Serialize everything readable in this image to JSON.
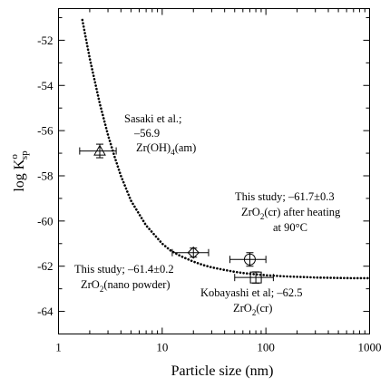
{
  "chart_data": {
    "type": "scatter",
    "title": "",
    "xlabel": "Particle size (nm)",
    "ylabel": {
      "main": "log K",
      "sup": "o",
      "sub": "sp"
    },
    "x_scale": "log",
    "xlim": [
      1,
      1000
    ],
    "ylim": [
      -65,
      -50.6
    ],
    "x_ticks": [
      1,
      10,
      100,
      1000
    ],
    "x_tick_labels": [
      "1",
      "10",
      "100",
      "1000"
    ],
    "y_ticks": [
      -52,
      -54,
      -56,
      -58,
      -60,
      -62,
      -64
    ],
    "y_tick_labels": [
      "-52",
      "-54",
      "-56",
      "-58",
      "-60",
      "-62",
      "-64"
    ],
    "grid": false,
    "points": [
      {
        "label": "Sasaki Zr(OH)4(am)",
        "marker": "triangle",
        "x": 2.5,
        "y": -56.9,
        "x_err": [
          1.6,
          3.6
        ],
        "y_err": 0.3
      },
      {
        "label": "This study ZrO2 nano powder",
        "marker": "diamond",
        "x": 20,
        "y": -61.4,
        "x_err": [
          12.5,
          28
        ],
        "y_err": 0.2
      },
      {
        "label": "This study ZrO2(cr) after heating",
        "marker": "circle",
        "x": 70,
        "y": -61.7,
        "x_err": [
          45,
          100
        ],
        "y_err": 0.3
      },
      {
        "label": "Kobayashi ZrO2(cr)",
        "marker": "square",
        "x": 80,
        "y": -62.5,
        "x_err": [
          50,
          118
        ],
        "y_err": 0.25
      }
    ],
    "fit_curve": {
      "style": "dotted",
      "x": [
        1.7,
        2,
        2.5,
        3,
        3.5,
        4,
        5,
        6,
        7,
        8,
        10,
        12,
        15,
        20,
        25,
        30,
        40,
        50,
        60,
        80,
        100,
        150,
        200,
        300,
        500,
        700,
        1000
      ],
      "y": [
        -51.1,
        -52.8,
        -54.8,
        -56.2,
        -57.2,
        -58.0,
        -59.1,
        -59.7,
        -60.2,
        -60.5,
        -61.0,
        -61.3,
        -61.55,
        -61.8,
        -61.95,
        -62.05,
        -62.17,
        -62.25,
        -62.3,
        -62.36,
        -62.4,
        -62.45,
        -62.47,
        -62.5,
        -62.52,
        -62.53,
        -62.53
      ]
    },
    "annotations": [
      {
        "lines": [
          "Sasaki et al.;",
          "–56.9",
          "Zr(OH)4(am)"
        ]
      },
      {
        "lines": [
          "This study; –61.7±0.3",
          "ZrO2(cr) after heating",
          "at 90°C"
        ]
      },
      {
        "lines": [
          "This study; –61.4±0.2",
          "ZrO2(nano powder)"
        ]
      },
      {
        "lines": [
          "Kobayashi et al; –62.5",
          "ZrO2(cr)"
        ]
      }
    ]
  }
}
